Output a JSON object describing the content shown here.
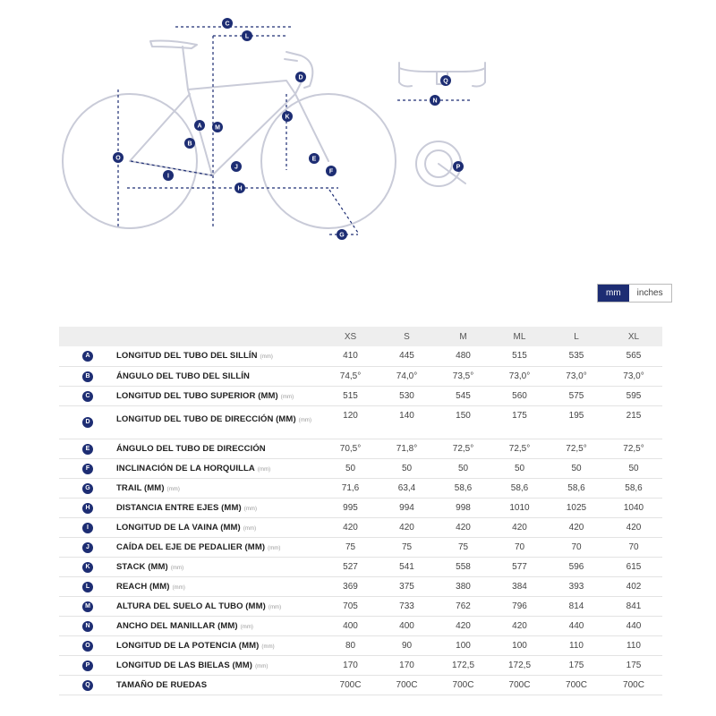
{
  "colors": {
    "navy": "#1d2d73",
    "header_bg": "#eeeeee",
    "diagram_line": "#c9cbd8",
    "dim_arrow": "#1d2d73"
  },
  "diagram_labels": [
    "A",
    "B",
    "C",
    "D",
    "E",
    "F",
    "G",
    "H",
    "I",
    "J",
    "K",
    "L",
    "M",
    "N",
    "O",
    "P",
    "Q"
  ],
  "unit_toggle": {
    "active": "mm",
    "inactive": "inches"
  },
  "table": {
    "sizes": [
      "XS",
      "S",
      "M",
      "ML",
      "L",
      "XL"
    ],
    "rows": [
      {
        "letter": "A",
        "name": "LONGITUD DEL TUBO DEL SILLÍN",
        "unit": "(mm)",
        "values": [
          "410",
          "445",
          "480",
          "515",
          "535",
          "565"
        ]
      },
      {
        "letter": "B",
        "name": "ÁNGULO DEL TUBO DEL SILLÍN",
        "unit": "",
        "values": [
          "74,5°",
          "74,0°",
          "73,5°",
          "73,0°",
          "73,0°",
          "73,0°"
        ]
      },
      {
        "letter": "C",
        "name": "LONGITUD DEL TUBO SUPERIOR (MM)",
        "unit": "(mm)",
        "values": [
          "515",
          "530",
          "545",
          "560",
          "575",
          "595"
        ]
      },
      {
        "letter": "D",
        "name": "LONGITUD DEL TUBO DE DIRECCIÓN (MM)",
        "unit": "(mm)",
        "values": [
          "120",
          "140",
          "150",
          "175",
          "195",
          "215"
        ]
      },
      {
        "letter": "E",
        "name": "ÁNGULO DEL TUBO DE DIRECCIÓN",
        "unit": "",
        "values": [
          "70,5°",
          "71,8°",
          "72,5°",
          "72,5°",
          "72,5°",
          "72,5°"
        ]
      },
      {
        "letter": "F",
        "name": "INCLINACIÓN DE LA HORQUILLA",
        "unit": "(mm)",
        "values": [
          "50",
          "50",
          "50",
          "50",
          "50",
          "50"
        ]
      },
      {
        "letter": "G",
        "name": "TRAIL (MM)",
        "unit": "(mm)",
        "values": [
          "71,6",
          "63,4",
          "58,6",
          "58,6",
          "58,6",
          "58,6"
        ]
      },
      {
        "letter": "H",
        "name": "DISTANCIA ENTRE EJES (MM)",
        "unit": "(mm)",
        "values": [
          "995",
          "994",
          "998",
          "1010",
          "1025",
          "1040"
        ]
      },
      {
        "letter": "I",
        "name": "LONGITUD DE LA VAINA (MM)",
        "unit": "(mm)",
        "values": [
          "420",
          "420",
          "420",
          "420",
          "420",
          "420"
        ]
      },
      {
        "letter": "J",
        "name": "CAÍDA DEL EJE DE PEDALIER (MM)",
        "unit": "(mm)",
        "values": [
          "75",
          "75",
          "75",
          "70",
          "70",
          "70"
        ]
      },
      {
        "letter": "K",
        "name": "STACK (MM)",
        "unit": "(mm)",
        "values": [
          "527",
          "541",
          "558",
          "577",
          "596",
          "615"
        ]
      },
      {
        "letter": "L",
        "name": "REACH (MM)",
        "unit": "(mm)",
        "values": [
          "369",
          "375",
          "380",
          "384",
          "393",
          "402"
        ]
      },
      {
        "letter": "M",
        "name": "ALTURA DEL SUELO AL TUBO (MM)",
        "unit": "(mm)",
        "values": [
          "705",
          "733",
          "762",
          "796",
          "814",
          "841"
        ]
      },
      {
        "letter": "N",
        "name": "ANCHO DEL MANILLAR (MM)",
        "unit": "(mm)",
        "values": [
          "400",
          "400",
          "420",
          "420",
          "440",
          "440"
        ]
      },
      {
        "letter": "O",
        "name": "LONGITUD DE LA POTENCIA (MM)",
        "unit": "(mm)",
        "values": [
          "80",
          "90",
          "100",
          "100",
          "110",
          "110"
        ]
      },
      {
        "letter": "P",
        "name": "LONGITUD DE LAS BIELAS (MM)",
        "unit": "(mm)",
        "values": [
          "170",
          "170",
          "172,5",
          "172,5",
          "175",
          "175"
        ]
      },
      {
        "letter": "Q",
        "name": "TAMAÑO DE RUEDAS",
        "unit": "",
        "values": [
          "700C",
          "700C",
          "700C",
          "700C",
          "700C",
          "700C"
        ]
      }
    ]
  }
}
